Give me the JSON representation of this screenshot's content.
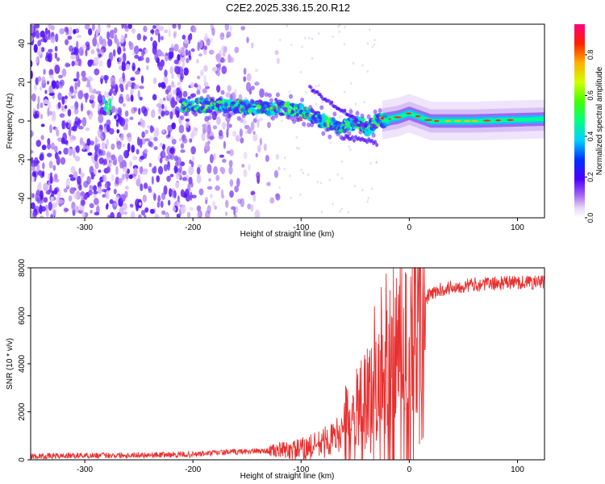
{
  "title": "C2E2.2025.336.15.20.R12",
  "chart_data": [
    {
      "type": "heatmap",
      "title": "C2E2.2025.336.15.20.R12",
      "xlabel": "Height of straight line (km)",
      "ylabel": "Frequency (Hz)",
      "xlim": [
        -350,
        125
      ],
      "ylim": [
        -50,
        50
      ],
      "xticks": [
        -300,
        -200,
        -100,
        0,
        100
      ],
      "xtick_labels": [
        "-300",
        "-200",
        "-100",
        "0",
        "100"
      ],
      "yticks": [
        -40,
        -20,
        0,
        20,
        40
      ],
      "ytick_labels": [
        "-40",
        "-20",
        "0",
        "20",
        "40"
      ],
      "ridge": {
        "description": "main frequency ridge (Hz) vs height (km)",
        "x": [
          -280,
          -210,
          -190,
          -170,
          -150,
          -130,
          -110,
          -95,
          -85,
          -75,
          -65,
          -55,
          -45,
          -38,
          -30,
          -20,
          -10,
          0,
          20,
          60,
          125
        ],
        "y": [
          9,
          8,
          8,
          8,
          7,
          7,
          6,
          5,
          1,
          -1,
          -3,
          -2,
          -1,
          -4,
          0,
          1,
          2,
          4,
          0,
          0,
          1
        ]
      },
      "colorbar": {
        "label": "Normalized spectral amplitude",
        "range": [
          0,
          0.95
        ],
        "ticks": [
          0,
          0.2,
          0.4,
          0.6,
          0.8
        ],
        "tick_labels": [
          "0.0",
          "0.2",
          "0.4",
          "0.6",
          "0.8"
        ]
      }
    },
    {
      "type": "line",
      "title": "",
      "xlabel": "Height of straight line (km)",
      "ylabel": "SNR (10 * v/v)",
      "xlim": [
        -350,
        125
      ],
      "ylim": [
        0,
        8000
      ],
      "xticks": [
        -300,
        -200,
        -100,
        0,
        100
      ],
      "xtick_labels": [
        "-300",
        "-200",
        "-100",
        "0",
        "100"
      ],
      "yticks": [
        0,
        2000,
        4000,
        6000,
        8000
      ],
      "ytick_labels": [
        "0",
        "2000",
        "4000",
        "6000",
        "8000"
      ],
      "series": [
        {
          "name": "SNR",
          "color": "#e83030",
          "x": [
            -350,
            -300,
            -250,
            -200,
            -175,
            -150,
            -125,
            -100,
            -85,
            -70,
            -60,
            -50,
            -40,
            -32,
            -25,
            -18,
            -12,
            -6,
            0,
            5,
            10,
            15,
            20,
            30,
            40,
            60,
            80,
            100,
            125
          ],
          "y": [
            150,
            180,
            200,
            220,
            300,
            350,
            380,
            420,
            600,
            900,
            1300,
            1600,
            2100,
            3000,
            3600,
            4200,
            4600,
            4800,
            4900,
            5200,
            6200,
            6700,
            6900,
            7100,
            7200,
            7300,
            7350,
            7400,
            7400
          ]
        }
      ]
    }
  ]
}
